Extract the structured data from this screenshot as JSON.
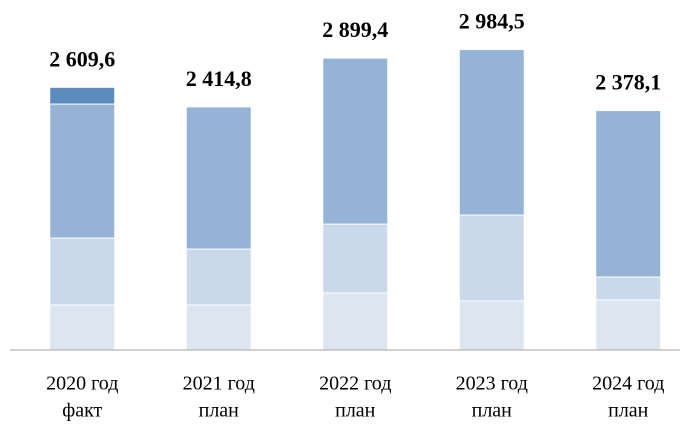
{
  "chart_data": {
    "type": "stacked-bar",
    "categories": [
      [
        "2020 год",
        "факт"
      ],
      [
        "2021 год",
        "план"
      ],
      [
        "2022 год",
        "план"
      ],
      [
        "2023 год",
        "план"
      ],
      [
        "2024 год",
        "план"
      ]
    ],
    "series": [
      {
        "color": "#dce6f1",
        "values": [
          447,
          447,
          566,
          487,
          497
        ]
      },
      {
        "color": "#c9d9ea",
        "values": [
          665,
          556,
          685,
          854,
          228
        ]
      },
      {
        "color": "#95b3d7",
        "values": [
          1331,
          1411.8,
          1648.4,
          1643.5,
          1653.1
        ]
      },
      {
        "color": "#5b8bbf",
        "values": [
          166.6,
          0,
          0,
          0,
          0
        ]
      }
    ],
    "totals": [
      2609.6,
      2414.8,
      2899.4,
      2984.5,
      2378.1
    ],
    "total_labels": [
      "2 609,6",
      "2 414,8",
      "2 899,4",
      "2 984,5",
      "2 378,1"
    ],
    "ylim": [
      0,
      3000
    ]
  }
}
